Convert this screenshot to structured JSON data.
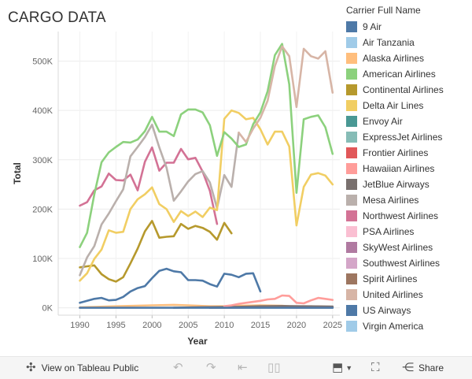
{
  "title": "CARGO DATA",
  "legend": {
    "title": "Carrier Full Name",
    "items": [
      {
        "name": "9 Air",
        "color": "#4e79a7"
      },
      {
        "name": "Air Tanzania",
        "color": "#a0cbe8"
      },
      {
        "name": "Alaska Airlines",
        "color": "#ffbe7d"
      },
      {
        "name": "American Airlines",
        "color": "#8cd17d"
      },
      {
        "name": "Continental Airlines",
        "color": "#b6992d"
      },
      {
        "name": "Delta Air Lines",
        "color": "#f1ce63"
      },
      {
        "name": "Envoy Air",
        "color": "#499894"
      },
      {
        "name": "ExpressJet Airlines",
        "color": "#86bcb6"
      },
      {
        "name": "Frontier Airlines",
        "color": "#e15759"
      },
      {
        "name": "Hawaiian Airlines",
        "color": "#ff9d9a"
      },
      {
        "name": "JetBlue Airways",
        "color": "#79706e"
      },
      {
        "name": "Mesa Airlines",
        "color": "#bab0ac"
      },
      {
        "name": "Northwest Airlines",
        "color": "#d37295"
      },
      {
        "name": "PSA Airlines",
        "color": "#fabfd2"
      },
      {
        "name": "SkyWest Airlines",
        "color": "#b07aa1"
      },
      {
        "name": "Southwest Airlines",
        "color": "#d4a6c8"
      },
      {
        "name": "Spirit Airlines",
        "color": "#9d7660"
      },
      {
        "name": "United Airlines",
        "color": "#d7b5a6"
      },
      {
        "name": "US Airways",
        "color": "#4e79a7"
      },
      {
        "name": "Virgin America",
        "color": "#a0cbe8"
      }
    ]
  },
  "toolbar": {
    "view_label": "View on Tableau Public",
    "share_label": "Share"
  },
  "chart_data": {
    "type": "line",
    "title": "CARGO DATA",
    "xlabel": "Year",
    "ylabel": "Total",
    "xlim": [
      1987,
      2026
    ],
    "ylim": [
      -15000,
      560000
    ],
    "x_ticks": [
      1990,
      1995,
      2000,
      2005,
      2010,
      2015,
      2020,
      2025
    ],
    "y_ticks": [
      {
        "value": 0,
        "label": "0K"
      },
      {
        "value": 100000,
        "label": "100K"
      },
      {
        "value": 200000,
        "label": "200K"
      },
      {
        "value": 300000,
        "label": "300K"
      },
      {
        "value": 400000,
        "label": "400K"
      },
      {
        "value": 500000,
        "label": "500K"
      }
    ],
    "grid": true,
    "series": [
      {
        "name": "Alaska Airlines",
        "color": "#ffbe7d",
        "x": [
          1990,
          1995,
          2000,
          2003,
          2005,
          2008,
          2010,
          2012,
          2015,
          2018,
          2020,
          2022,
          2025
        ],
        "y": [
          1000,
          3000,
          5000,
          6000,
          5000,
          3000,
          3000,
          4000,
          5000,
          4000,
          2000,
          3000,
          2000
        ]
      },
      {
        "name": "JetBlue Airways",
        "color": "#79706e",
        "x": [
          2003,
          2006,
          2009,
          2012,
          2015,
          2018,
          2021,
          2025
        ],
        "y": [
          0,
          1000,
          1500,
          2000,
          3000,
          3500,
          3000,
          2500
        ]
      },
      {
        "name": "Spirit Airlines",
        "color": "#9d7660",
        "x": [
          2008,
          2012,
          2016,
          2020,
          2025
        ],
        "y": [
          0,
          500,
          1000,
          500,
          500
        ]
      },
      {
        "name": "Hawaiian Airlines",
        "color": "#ff9d9a",
        "x": [
          2010,
          2011,
          2012,
          2013,
          2014,
          2015,
          2016,
          2017,
          2018,
          2019,
          2020,
          2021,
          2022,
          2023,
          2024,
          2025
        ],
        "y": [
          3000,
          5000,
          8000,
          10000,
          12000,
          14000,
          17000,
          18000,
          25000,
          24000,
          10000,
          9000,
          15000,
          20000,
          18000,
          16000
        ]
      },
      {
        "name": "9 Air",
        "color": "#4e79a7",
        "x": [
          1990,
          1995,
          2000,
          2005,
          2010,
          2015,
          2020,
          2025
        ],
        "y": [
          0,
          0,
          0,
          0,
          0,
          0,
          0,
          0
        ]
      },
      {
        "name": "US Airways",
        "color": "#4e79a7",
        "x": [
          1990,
          1991,
          1992,
          1993,
          1994,
          1995,
          1996,
          1997,
          1998,
          1999,
          2000,
          2001,
          2002,
          2003,
          2004,
          2005,
          2006,
          2007,
          2008,
          2009,
          2010,
          2011,
          2012,
          2013,
          2014,
          2015
        ],
        "y": [
          10000,
          14000,
          18000,
          20000,
          15000,
          16000,
          22000,
          33000,
          40000,
          44000,
          60000,
          75000,
          79000,
          74000,
          72000,
          56000,
          56000,
          55000,
          48000,
          43000,
          69000,
          67000,
          62000,
          69000,
          70000,
          33000
        ]
      },
      {
        "name": "Continental Airlines",
        "color": "#b6992d",
        "x": [
          1990,
          1991,
          1992,
          1993,
          1994,
          1995,
          1996,
          1997,
          1998,
          1999,
          2000,
          2001,
          2002,
          2003,
          2004,
          2005,
          2006,
          2007,
          2008,
          2009,
          2010,
          2011
        ],
        "y": [
          82000,
          84000,
          86000,
          68000,
          58000,
          53000,
          62000,
          90000,
          120000,
          155000,
          176000,
          142000,
          144000,
          145000,
          170000,
          160000,
          166000,
          162000,
          154000,
          138000,
          172000,
          151000
        ]
      },
      {
        "name": "Northwest Airlines",
        "color": "#d37295",
        "x": [
          1990,
          1991,
          1992,
          1993,
          1994,
          1995,
          1996,
          1997,
          1998,
          1999,
          2000,
          2001,
          2002,
          2003,
          2004,
          2005,
          2006,
          2007,
          2008,
          2009
        ],
        "y": [
          207000,
          214000,
          238000,
          246000,
          272000,
          259000,
          258000,
          270000,
          238000,
          296000,
          325000,
          278000,
          294000,
          294000,
          322000,
          301000,
          304000,
          276000,
          237000,
          170000
        ]
      },
      {
        "name": "Mesa Airlines",
        "color": "#bab0ac",
        "x": [
          1990,
          1991,
          1992,
          1993,
          1994,
          1995,
          1996,
          1997,
          1998,
          1999,
          2000,
          2001,
          2002,
          2003,
          2004,
          2005,
          2006,
          2007,
          2008,
          2009,
          2010,
          2011,
          2012
        ],
        "y": [
          66000,
          102000,
          125000,
          169000,
          191000,
          216000,
          240000,
          307000,
          326000,
          346000,
          371000,
          325000,
          284000,
          217000,
          236000,
          256000,
          271000,
          277000,
          254000,
          202000,
          269000,
          245000,
          355000
        ]
      },
      {
        "name": "Delta Air Lines",
        "color": "#f1ce63",
        "x": [
          1990,
          1991,
          1992,
          1993,
          1994,
          1995,
          1996,
          1997,
          1998,
          1999,
          2000,
          2001,
          2002,
          2003,
          2004,
          2005,
          2006,
          2007,
          2008,
          2009,
          2010,
          2011,
          2012,
          2013,
          2014,
          2015,
          2016,
          2017,
          2018,
          2019,
          2020,
          2021,
          2022,
          2023,
          2024,
          2025
        ],
        "y": [
          55000,
          70000,
          99000,
          118000,
          157000,
          152000,
          154000,
          200000,
          220000,
          230000,
          244000,
          210000,
          200000,
          174000,
          196000,
          186000,
          195000,
          184000,
          203000,
          198000,
          383000,
          400000,
          395000,
          382000,
          385000,
          362000,
          331000,
          357000,
          357000,
          327000,
          167000,
          245000,
          270000,
          273000,
          268000,
          250000
        ]
      },
      {
        "name": "American Airlines",
        "color": "#8cd17d",
        "x": [
          1990,
          1991,
          1992,
          1993,
          1994,
          1995,
          1996,
          1997,
          1998,
          1999,
          2000,
          2001,
          2002,
          2003,
          2004,
          2005,
          2006,
          2007,
          2008,
          2009,
          2010,
          2011,
          2012,
          2013,
          2014,
          2015,
          2016,
          2017,
          2018,
          2019,
          2020,
          2021,
          2022,
          2023,
          2024,
          2025
        ],
        "y": [
          123000,
          152000,
          230000,
          295000,
          315000,
          326000,
          336000,
          335000,
          341000,
          358000,
          387000,
          357000,
          357000,
          348000,
          392000,
          402000,
          402000,
          396000,
          370000,
          308000,
          356000,
          343000,
          326000,
          331000,
          372000,
          396000,
          439000,
          512000,
          535000,
          453000,
          233000,
          382000,
          387000,
          390000,
          366000,
          312000
        ]
      },
      {
        "name": "United Airlines",
        "color": "#d7b5a6",
        "x": [
          2012,
          2013,
          2014,
          2015,
          2016,
          2017,
          2018,
          2019,
          2020,
          2021,
          2022,
          2023,
          2024,
          2025
        ],
        "y": [
          355000,
          336000,
          363000,
          385000,
          420000,
          490000,
          530000,
          510000,
          407000,
          525000,
          510000,
          505000,
          520000,
          436000
        ]
      }
    ]
  }
}
